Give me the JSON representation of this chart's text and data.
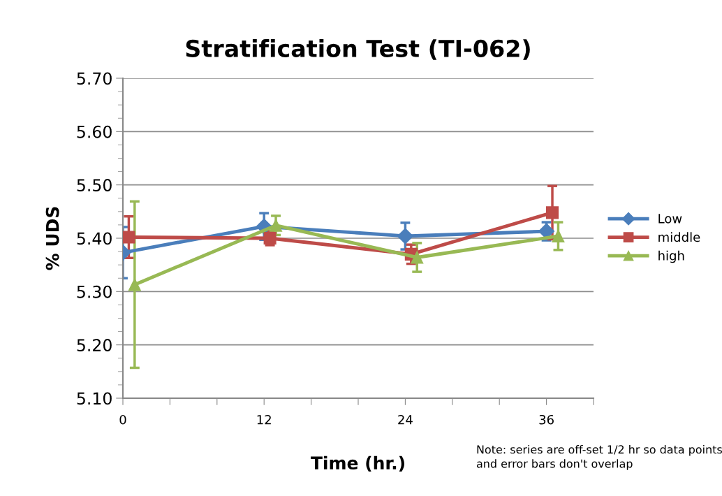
{
  "chart_data": {
    "type": "line",
    "title": "Stratification Test (TI-062)",
    "xlabel": "Time (hr.)",
    "ylabel": "% UDS",
    "xlim": [
      0,
      40
    ],
    "xticks": [
      0,
      {
        "value": 4,
        "label": null
      },
      {
        "value": 8,
        "label": null
      },
      12,
      {
        "value": 16,
        "label": null
      },
      {
        "value": 20,
        "label": null
      },
      24,
      {
        "value": 28,
        "label": null
      },
      {
        "value": 32,
        "label": null
      },
      36,
      {
        "value": 40,
        "label": null
      }
    ],
    "ylim": [
      5.1,
      5.7
    ],
    "yticks": [
      {
        "value": 5.1,
        "label": "5.10"
      },
      {
        "value": 5.2,
        "label": "5.20"
      },
      {
        "value": 5.3,
        "label": "5.30"
      },
      {
        "value": 5.4,
        "label": "5.40"
      },
      {
        "value": 5.5,
        "label": "5.50"
      },
      {
        "value": 5.6,
        "label": "5.60"
      },
      {
        "value": 5.7,
        "label": "5.70"
      }
    ],
    "grid": "y",
    "legend": "right",
    "line_style": "solid",
    "series": [
      {
        "name": "Low",
        "color": "#4a7ebb",
        "marker": "diamond",
        "x": [
          0,
          12,
          24,
          36
        ],
        "values": [
          5.373,
          5.422,
          5.404,
          5.413
        ],
        "errors": [
          0.048,
          0.025,
          0.025,
          0.017
        ]
      },
      {
        "name": "middle",
        "color": "#be4b48",
        "marker": "square",
        "x": [
          0.5,
          12.5,
          24.5,
          36.5
        ],
        "values": [
          5.402,
          5.4,
          5.37,
          5.448
        ],
        "errors": [
          0.039,
          0.013,
          0.018,
          0.05
        ]
      },
      {
        "name": "high",
        "color": "#98b954",
        "marker": "triangle",
        "x": [
          1,
          13,
          25,
          37
        ],
        "values": [
          5.313,
          5.424,
          5.364,
          5.404
        ],
        "errors": [
          0.156,
          0.018,
          0.027,
          0.026
        ]
      }
    ],
    "annotations": [
      "Note: series are off-set 1/2 hr so data points and error bars don't overlap"
    ]
  }
}
